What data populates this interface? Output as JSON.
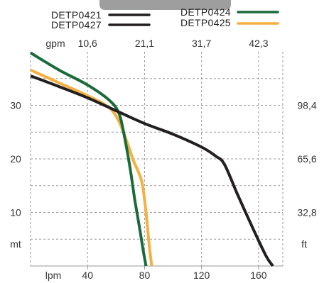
{
  "chart_data": {
    "type": "line",
    "title": "",
    "legend": [
      {
        "name": "DETP0421",
        "color": "#231f20"
      },
      {
        "name": "DETP0424",
        "color": "#1b6b3a"
      },
      {
        "name": "DETP0427",
        "color": "#231f20"
      },
      {
        "name": "DETP0425",
        "color": "#f5b041"
      }
    ],
    "x_bottom": {
      "unit": "lpm",
      "ticks": [
        40,
        80,
        120,
        160
      ],
      "range": [
        0,
        177
      ]
    },
    "x_top": {
      "unit": "gpm",
      "ticks": [
        "10,6",
        "21,1",
        "31,7",
        "42,3"
      ],
      "tick_positions_lpm": [
        40,
        80,
        120,
        160
      ]
    },
    "y_left": {
      "unit": "mt",
      "ticks": [
        10,
        20,
        30
      ],
      "range": [
        0,
        40
      ]
    },
    "y_right": {
      "unit": "ft",
      "ticks": [
        "32,8",
        "65,6",
        "98,4"
      ],
      "tick_positions_mt": [
        10,
        20,
        30
      ]
    },
    "grid": true,
    "legend_position": "top",
    "series": [
      {
        "name": "DETP0421",
        "color": "#231f20",
        "x": [
          0,
          20,
          40,
          60,
          80,
          100,
          120,
          130,
          136,
          145,
          155,
          165,
          170
        ],
        "y": [
          35.5,
          33.5,
          31.4,
          29.0,
          26.6,
          24.6,
          22.2,
          20.5,
          19.0,
          13.5,
          7.6,
          2.0,
          0
        ]
      },
      {
        "name": "DETP0424",
        "color": "#1b6b3a",
        "x": [
          0,
          20,
          40,
          55,
          62,
          66,
          70,
          73,
          76,
          79,
          81
        ],
        "y": [
          39.8,
          36.6,
          33.8,
          31.0,
          28.5,
          24.0,
          18.0,
          12.6,
          7.9,
          3.0,
          0
        ]
      },
      {
        "name": "DETP0425",
        "color": "#f5b041",
        "x": [
          0,
          20,
          40,
          55,
          62,
          68,
          72,
          78,
          81,
          83,
          85
        ],
        "y": [
          36.6,
          34.2,
          31.8,
          29.6,
          27.0,
          22.9,
          19.8,
          15.8,
          10.0,
          4.5,
          0
        ]
      }
    ]
  }
}
